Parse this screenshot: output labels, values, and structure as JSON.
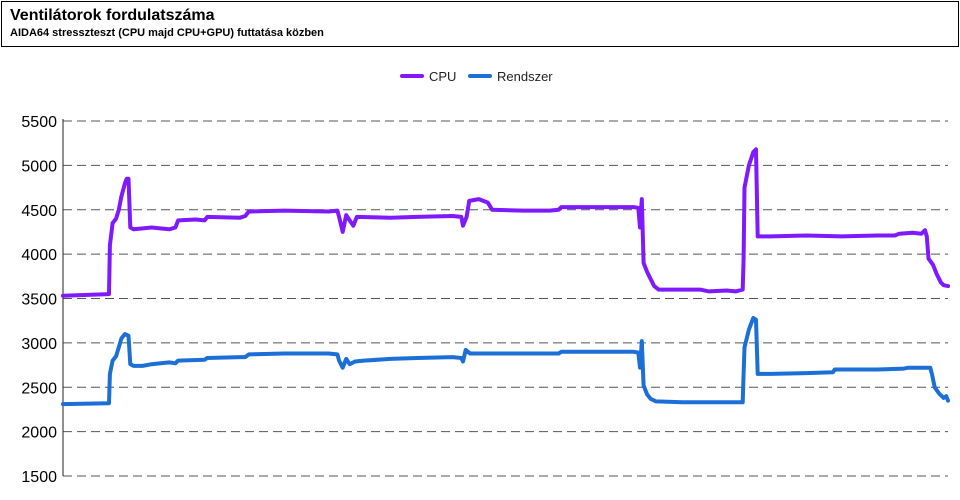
{
  "chart_data": {
    "type": "line",
    "title": "Ventilátorok fordulatszáma",
    "subtitle": "AIDA64 stresszteszt (CPU majd CPU+GPU) futtatása közben",
    "xlabel": "",
    "ylabel": "",
    "ylim": [
      1500,
      5500
    ],
    "yticks": [
      "5500",
      "5000",
      "4500",
      "4000",
      "3500",
      "3000",
      "2500",
      "2000",
      "1500"
    ],
    "grid": true,
    "legend": "top-center",
    "x_range": [
      0,
      100
    ],
    "series": [
      {
        "name": "CPU",
        "color": "#7f1aff",
        "points": [
          [
            0,
            3530
          ],
          [
            5.2,
            3550
          ],
          [
            5.3,
            4100
          ],
          [
            5.6,
            4350
          ],
          [
            6.0,
            4400
          ],
          [
            6.3,
            4500
          ],
          [
            6.6,
            4650
          ],
          [
            7.0,
            4800
          ],
          [
            7.2,
            4850
          ],
          [
            7.4,
            4850
          ],
          [
            7.6,
            4300
          ],
          [
            8.0,
            4280
          ],
          [
            10.0,
            4300
          ],
          [
            12.0,
            4280
          ],
          [
            12.7,
            4300
          ],
          [
            13.0,
            4380
          ],
          [
            15.0,
            4390
          ],
          [
            16.0,
            4380
          ],
          [
            16.3,
            4420
          ],
          [
            20.0,
            4410
          ],
          [
            20.6,
            4430
          ],
          [
            21.0,
            4480
          ],
          [
            25.0,
            4490
          ],
          [
            30.0,
            4480
          ],
          [
            31.0,
            4490
          ],
          [
            31.2,
            4420
          ],
          [
            31.6,
            4250
          ],
          [
            32.0,
            4440
          ],
          [
            32.4,
            4380
          ],
          [
            32.8,
            4320
          ],
          [
            33.2,
            4420
          ],
          [
            37.0,
            4410
          ],
          [
            40.0,
            4420
          ],
          [
            44.0,
            4430
          ],
          [
            45.0,
            4420
          ],
          [
            45.2,
            4320
          ],
          [
            45.6,
            4420
          ],
          [
            45.9,
            4600
          ],
          [
            47.0,
            4620
          ],
          [
            48.0,
            4580
          ],
          [
            48.5,
            4500
          ],
          [
            52.0,
            4490
          ],
          [
            55.0,
            4490
          ],
          [
            56.0,
            4500
          ],
          [
            56.3,
            4530
          ],
          [
            60.0,
            4530
          ],
          [
            64.5,
            4530
          ],
          [
            65.0,
            4520
          ],
          [
            65.2,
            4300
          ],
          [
            65.4,
            4620
          ],
          [
            65.6,
            3900
          ],
          [
            66.0,
            3800
          ],
          [
            66.4,
            3720
          ],
          [
            66.8,
            3640
          ],
          [
            67.3,
            3600
          ],
          [
            70.0,
            3600
          ],
          [
            72.0,
            3600
          ],
          [
            73.0,
            3580
          ],
          [
            75.0,
            3590
          ],
          [
            76.0,
            3580
          ],
          [
            76.8,
            3600
          ],
          [
            76.9,
            3950
          ],
          [
            77.0,
            4750
          ],
          [
            77.5,
            5000
          ],
          [
            78.0,
            5150
          ],
          [
            78.3,
            5180
          ],
          [
            78.5,
            4200
          ],
          [
            80.0,
            4200
          ],
          [
            84.0,
            4210
          ],
          [
            88.0,
            4200
          ],
          [
            92.0,
            4210
          ],
          [
            94.0,
            4210
          ],
          [
            94.5,
            4230
          ],
          [
            96.0,
            4240
          ],
          [
            97.0,
            4230
          ],
          [
            97.4,
            4270
          ],
          [
            97.6,
            4200
          ],
          [
            97.8,
            3950
          ],
          [
            98.3,
            3880
          ],
          [
            98.7,
            3780
          ],
          [
            99.2,
            3680
          ],
          [
            99.5,
            3650
          ],
          [
            100,
            3640
          ]
        ]
      },
      {
        "name": "Rendszer",
        "color": "#1b6fd6",
        "points": [
          [
            0,
            2310
          ],
          [
            5.2,
            2320
          ],
          [
            5.3,
            2650
          ],
          [
            5.6,
            2800
          ],
          [
            6.0,
            2850
          ],
          [
            6.3,
            2950
          ],
          [
            6.6,
            3050
          ],
          [
            7.0,
            3100
          ],
          [
            7.4,
            3080
          ],
          [
            7.6,
            2760
          ],
          [
            8.0,
            2740
          ],
          [
            9.0,
            2740
          ],
          [
            10.0,
            2760
          ],
          [
            12.0,
            2780
          ],
          [
            12.7,
            2770
          ],
          [
            13.0,
            2800
          ],
          [
            16.0,
            2810
          ],
          [
            16.3,
            2830
          ],
          [
            20.0,
            2840
          ],
          [
            20.6,
            2840
          ],
          [
            21.0,
            2870
          ],
          [
            25.0,
            2880
          ],
          [
            30.0,
            2880
          ],
          [
            31.0,
            2870
          ],
          [
            31.2,
            2800
          ],
          [
            31.6,
            2720
          ],
          [
            32.0,
            2820
          ],
          [
            32.4,
            2760
          ],
          [
            33.0,
            2790
          ],
          [
            34.0,
            2800
          ],
          [
            37.0,
            2820
          ],
          [
            40.0,
            2830
          ],
          [
            44.0,
            2840
          ],
          [
            45.0,
            2830
          ],
          [
            45.2,
            2790
          ],
          [
            45.5,
            2920
          ],
          [
            46.0,
            2880
          ],
          [
            52.0,
            2880
          ],
          [
            56.0,
            2880
          ],
          [
            56.3,
            2900
          ],
          [
            64.5,
            2900
          ],
          [
            65.0,
            2890
          ],
          [
            65.2,
            2720
          ],
          [
            65.4,
            3020
          ],
          [
            65.6,
            2520
          ],
          [
            66.0,
            2420
          ],
          [
            66.4,
            2370
          ],
          [
            67.0,
            2340
          ],
          [
            70.0,
            2330
          ],
          [
            73.0,
            2330
          ],
          [
            76.8,
            2330
          ],
          [
            76.9,
            2650
          ],
          [
            77.0,
            2950
          ],
          [
            77.5,
            3150
          ],
          [
            78.0,
            3280
          ],
          [
            78.3,
            3260
          ],
          [
            78.5,
            2650
          ],
          [
            80.0,
            2650
          ],
          [
            84.0,
            2660
          ],
          [
            87.0,
            2670
          ],
          [
            87.2,
            2700
          ],
          [
            92.0,
            2700
          ],
          [
            95.0,
            2710
          ],
          [
            95.5,
            2720
          ],
          [
            98.0,
            2720
          ],
          [
            98.2,
            2640
          ],
          [
            98.5,
            2500
          ],
          [
            99.0,
            2430
          ],
          [
            99.5,
            2380
          ],
          [
            99.8,
            2400
          ],
          [
            100,
            2350
          ]
        ]
      }
    ]
  }
}
